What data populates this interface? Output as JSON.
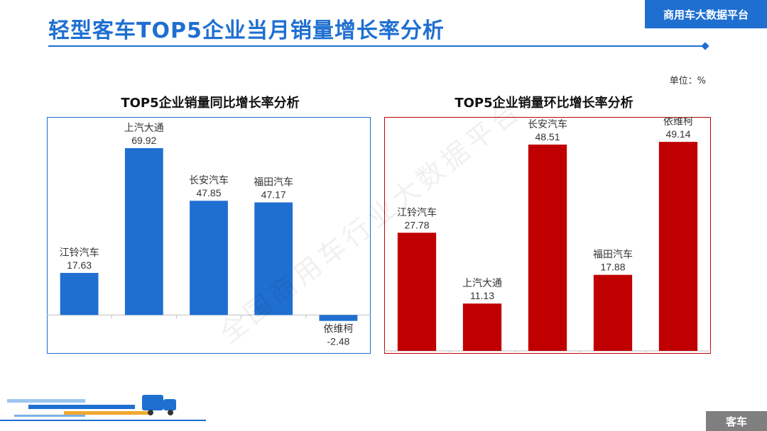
{
  "page": {
    "title": "轻型客车TOP5企业当月销量增长率分析",
    "brand": "商用车大数据平台",
    "unit": "单位：%",
    "footer_tag": "客车",
    "watermark": "全国商用车行业大数据平台"
  },
  "colors": {
    "accent": "#1f6fd1",
    "red": "#c00000",
    "footer": "#7f7f7f"
  },
  "chart_data": [
    {
      "type": "bar",
      "title": "TOP5企业销量同比增长率分析",
      "categories": [
        "江铃汽车",
        "上汽大通",
        "长安汽车",
        "福田汽车",
        "依维柯"
      ],
      "values": [
        17.63,
        69.92,
        47.85,
        47.17,
        -2.48
      ],
      "ylim": [
        -10,
        80
      ],
      "color": "#1f6fd1",
      "data_labels": [
        "17.63",
        "69.92",
        "47.85",
        "47.17",
        "-2.48"
      ],
      "grid": false
    },
    {
      "type": "bar",
      "title": "TOP5企业销量环比增长率分析",
      "categories": [
        "江铃汽车",
        "上汽大通",
        "长安汽车",
        "福田汽车",
        "依维柯"
      ],
      "values": [
        27.78,
        11.13,
        48.51,
        17.88,
        49.14
      ],
      "ylim": [
        0,
        55
      ],
      "color": "#c00000",
      "data_labels": [
        "27.78",
        "11.13",
        "48.51",
        "17.88",
        "49.14"
      ],
      "grid": false
    }
  ]
}
